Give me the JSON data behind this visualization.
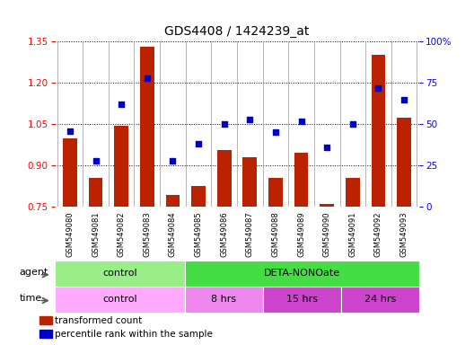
{
  "title": "GDS4408 / 1424239_at",
  "samples": [
    "GSM549080",
    "GSM549081",
    "GSM549082",
    "GSM549083",
    "GSM549084",
    "GSM549085",
    "GSM549086",
    "GSM549087",
    "GSM549088",
    "GSM549089",
    "GSM549090",
    "GSM549091",
    "GSM549092",
    "GSM549093"
  ],
  "transformed_count": [
    1.0,
    0.855,
    1.045,
    1.33,
    0.795,
    0.825,
    0.955,
    0.93,
    0.855,
    0.945,
    0.76,
    0.855,
    1.3,
    1.075
  ],
  "percentile_rank": [
    46,
    28,
    62,
    78,
    28,
    38,
    50,
    53,
    45,
    52,
    36,
    50,
    72,
    65
  ],
  "ylim_left": [
    0.75,
    1.35
  ],
  "ylim_right": [
    0,
    100
  ],
  "yticks_left": [
    0.75,
    0.9,
    1.05,
    1.2,
    1.35
  ],
  "yticks_right": [
    0,
    25,
    50,
    75,
    100
  ],
  "ytick_labels_right": [
    "0",
    "25",
    "50",
    "75",
    "100%"
  ],
  "bar_color": "#bb2200",
  "dot_color": "#0000cc",
  "sample_bg_color": "#cccccc",
  "agent_colors": [
    "#99ee88",
    "#44dd44"
  ],
  "time_colors": [
    "#ffaaff",
    "#ee88ee",
    "#cc44cc",
    "#cc44cc"
  ],
  "title_fontsize": 10,
  "tick_fontsize": 7.5,
  "label_fontsize": 8,
  "sample_fontsize": 6
}
